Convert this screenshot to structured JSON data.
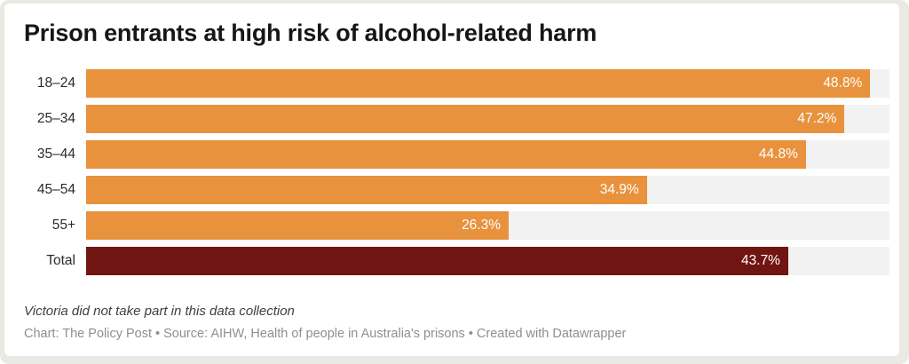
{
  "header": {
    "title": "Prison entrants at high risk of alcohol-related harm"
  },
  "chart_data": {
    "type": "bar",
    "orientation": "horizontal",
    "title": "Prison entrants at high risk of alcohol-related harm",
    "categories": [
      "18–24",
      "25–34",
      "35–44",
      "45–54",
      "55+",
      "Total"
    ],
    "values": [
      48.8,
      47.2,
      44.8,
      34.9,
      26.3,
      43.7
    ],
    "value_labels": [
      "48.8%",
      "47.2%",
      "44.8%",
      "34.9%",
      "26.3%",
      "43.7%"
    ],
    "xlabel": "",
    "ylabel": "",
    "xlim": [
      0,
      50
    ],
    "grid": false,
    "legend": false,
    "bar_colors": [
      "#E8923D",
      "#E8923D",
      "#E8923D",
      "#E8923D",
      "#E8923D",
      "#701511"
    ],
    "track_color": "#F2F2F2",
    "value_label_color": "#FFFFFF",
    "annotations": []
  },
  "footer": {
    "note": "Victoria did not take part in this data collection",
    "attribution": "Chart: The Policy Post • Source: AIHW, Health of people in Australia's prisons • Created with Datawrapper"
  }
}
